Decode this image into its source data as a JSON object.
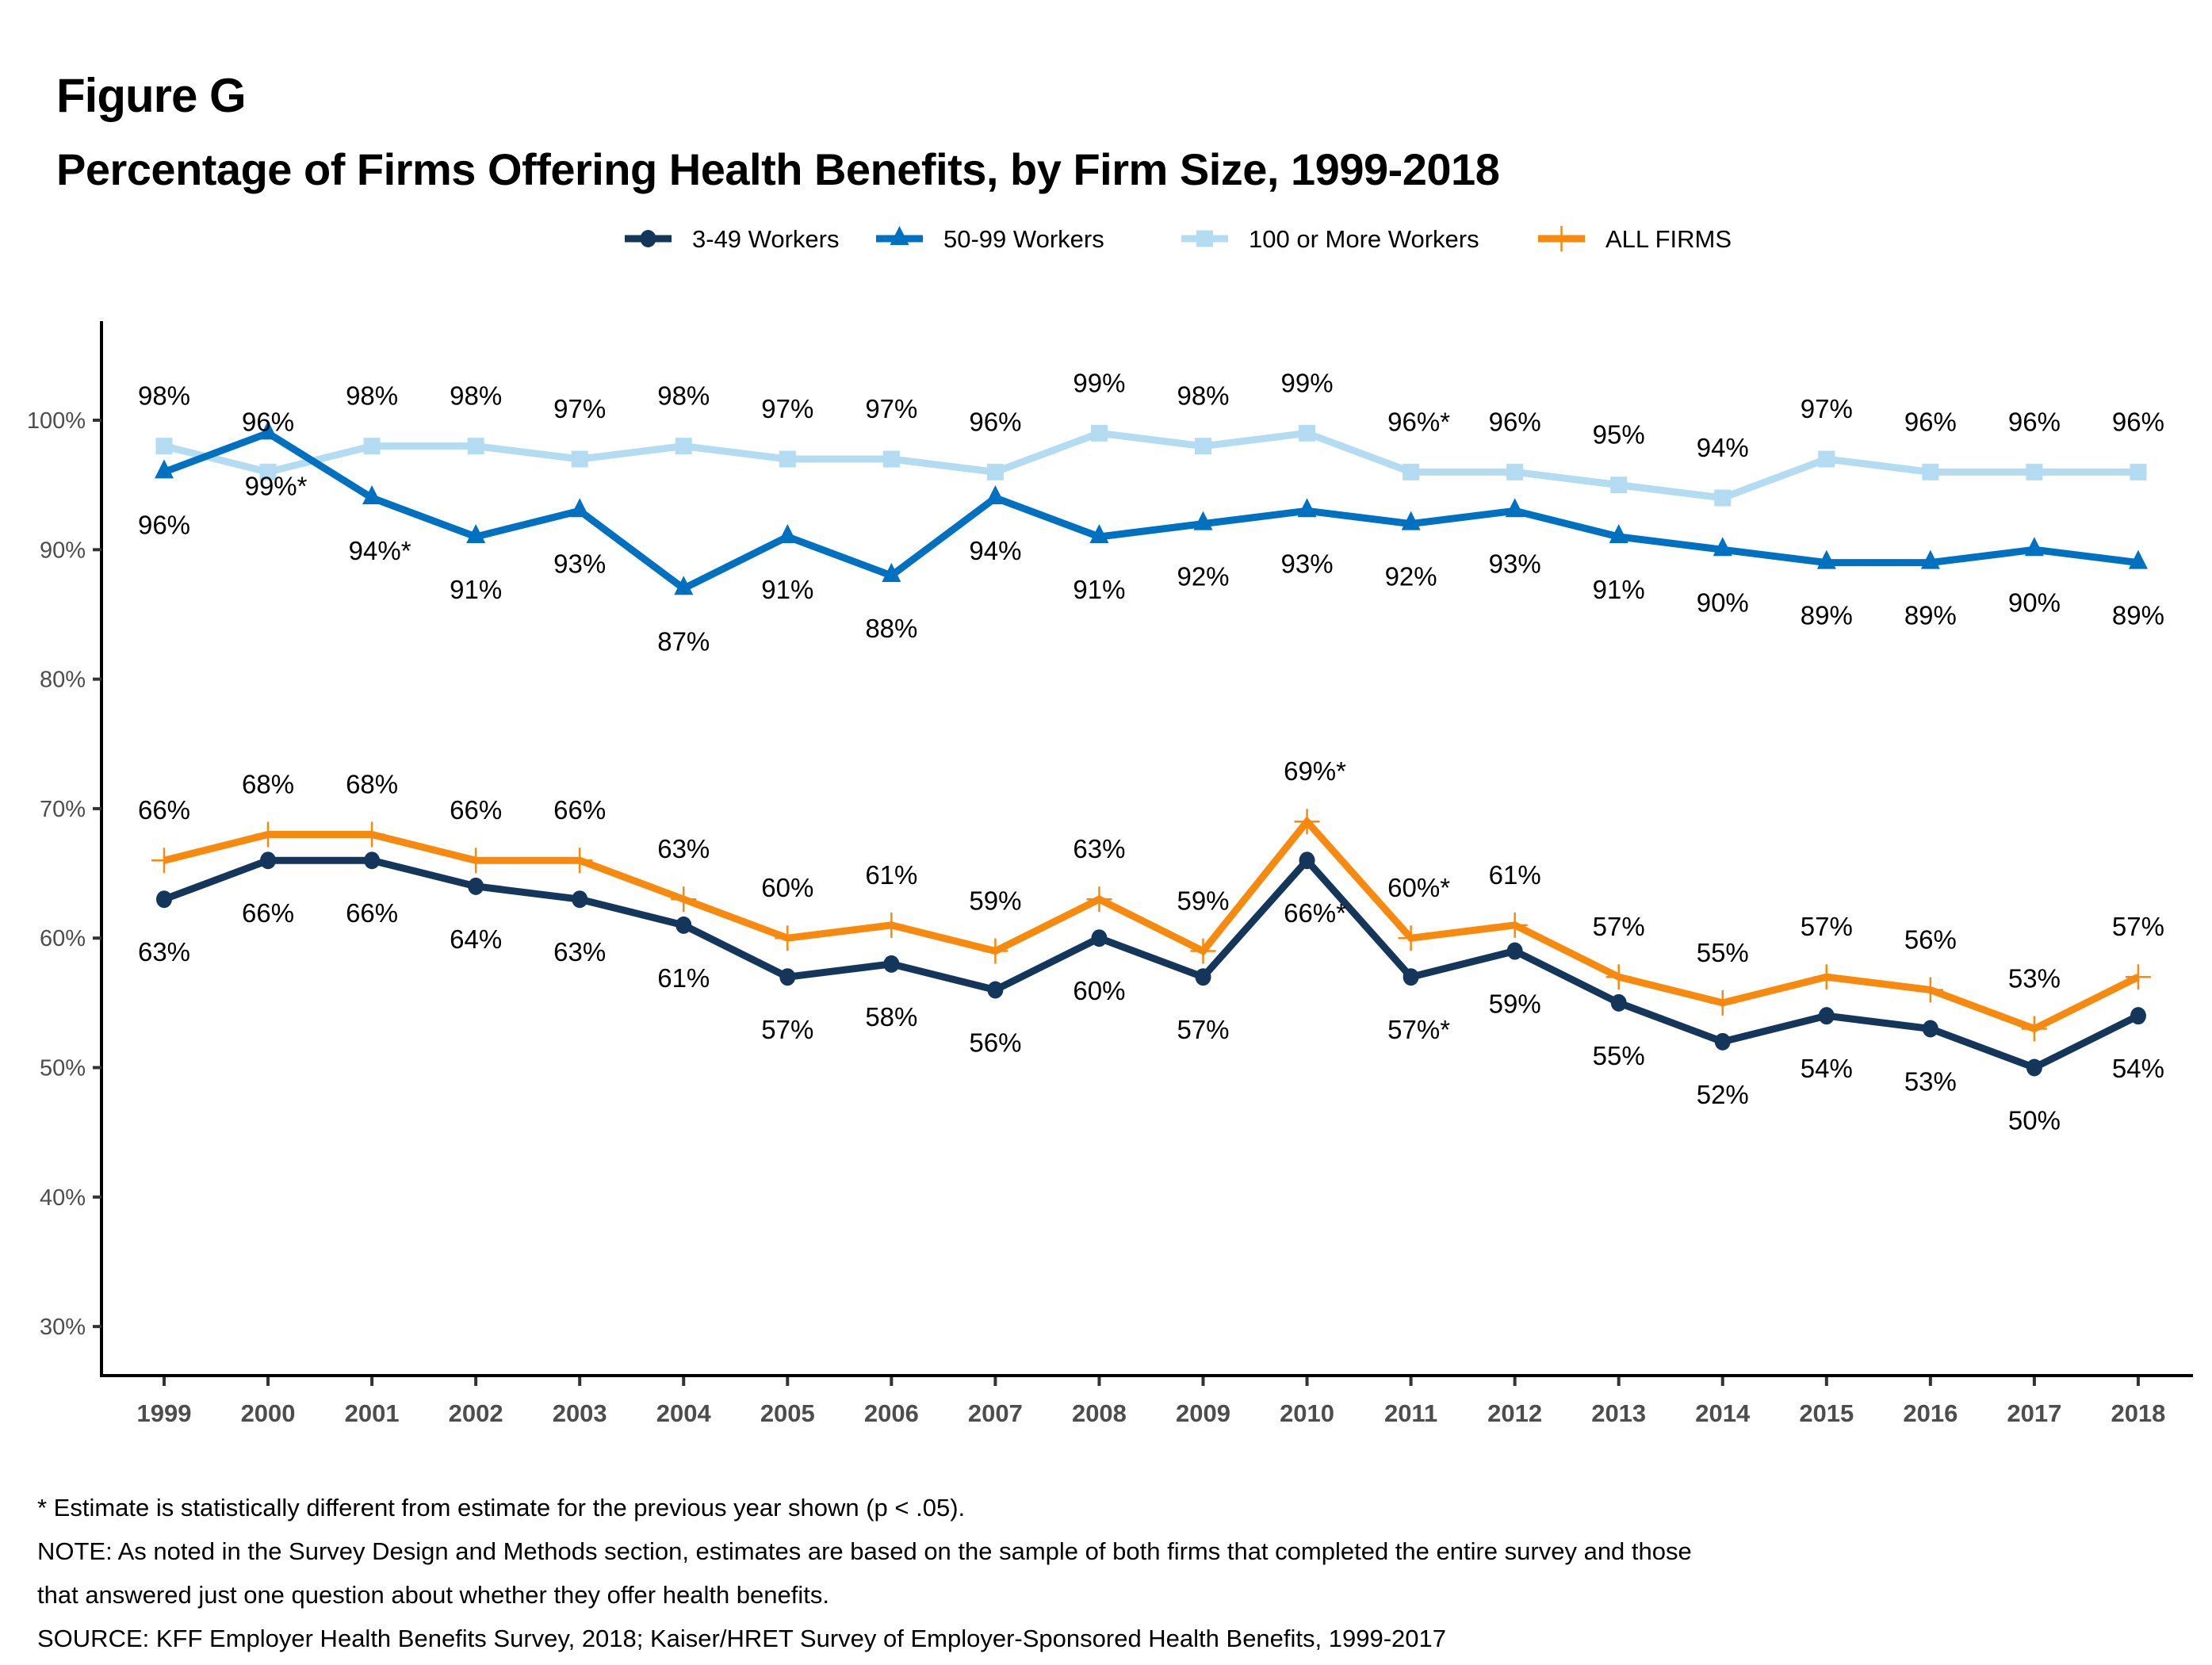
{
  "figure": {
    "label": "Figure G",
    "title": "Percentage of Firms Offering Health Benefits, by Firm Size, 1999-2018"
  },
  "footnotes": [
    "* Estimate is statistically different from estimate for the previous year shown (p < .05).",
    "NOTE: As noted in the Survey Design and Methods section, estimates are based on the sample of both firms that completed the entire survey and those",
    "that answered just one question about whether they offer health benefits.",
    "SOURCE: KFF Employer Health Benefits Survey, 2018; Kaiser/HRET Survey of Employer-Sponsored Health Benefits, 1999-2017"
  ],
  "chart_data": {
    "type": "line",
    "title": "Percentage of Firms Offering Health Benefits, by Firm Size, 1999-2018",
    "xlabel": "",
    "ylabel": "",
    "x": [
      "1999",
      "2000",
      "2001",
      "2002",
      "2003",
      "2004",
      "2005",
      "2006",
      "2007",
      "2008",
      "2009",
      "2010",
      "2011",
      "2012",
      "2013",
      "2014",
      "2015",
      "2016",
      "2017",
      "2018"
    ],
    "ylim": [
      26,
      108
    ],
    "yticks": [
      30,
      40,
      50,
      60,
      70,
      80,
      90,
      100
    ],
    "ytick_labels": [
      "30%",
      "40%",
      "50%",
      "60%",
      "70%",
      "80%",
      "90%",
      "100%"
    ],
    "grid": false,
    "legend_position": "top-center",
    "series": [
      {
        "name": "3-49 Workers",
        "color": "#14365a",
        "marker": "circle",
        "label_side": "below",
        "values": [
          63,
          66,
          66,
          64,
          63,
          61,
          57,
          58,
          56,
          60,
          57,
          66,
          57,
          59,
          55,
          52,
          54,
          53,
          50,
          54
        ],
        "labels": [
          "63%",
          "66%",
          "66%",
          "64%",
          "63%",
          "61%",
          "57%",
          "58%",
          "56%",
          "60%",
          "57%",
          "66%*",
          "57%*",
          "59%",
          "55%",
          "52%",
          "54%",
          "53%",
          "50%",
          "54%"
        ]
      },
      {
        "name": "50-99 Workers",
        "color": "#0070c0",
        "marker": "triangle",
        "label_side": "below",
        "values": [
          96,
          99,
          94,
          91,
          93,
          87,
          91,
          88,
          94,
          91,
          92,
          93,
          92,
          93,
          91,
          90,
          89,
          89,
          90,
          89
        ],
        "labels": [
          "96%",
          "99%*",
          "94%*",
          "91%",
          "93%",
          "87%",
          "91%",
          "88%",
          "94%",
          "91%",
          "92%",
          "93%",
          "92%",
          "93%",
          "91%",
          "90%",
          "89%",
          "89%",
          "90%",
          "89%"
        ]
      },
      {
        "name": "100 or More Workers",
        "color": "#b3dcf2",
        "marker": "square",
        "label_side": "above",
        "values": [
          98,
          96,
          98,
          98,
          97,
          98,
          97,
          97,
          96,
          99,
          98,
          99,
          96,
          96,
          95,
          94,
          97,
          96,
          96,
          96
        ],
        "labels": [
          "98%",
          "96%",
          "98%",
          "98%",
          "97%",
          "98%",
          "97%",
          "97%",
          "96%",
          "99%",
          "98%",
          "99%",
          "96%*",
          "96%",
          "95%",
          "94%",
          "97%",
          "96%",
          "96%",
          "96%"
        ]
      },
      {
        "name": "ALL FIRMS",
        "color": "#f8890f",
        "marker": "plus",
        "label_side": "above",
        "values": [
          66,
          68,
          68,
          66,
          66,
          63,
          60,
          61,
          59,
          63,
          59,
          69,
          60,
          61,
          57,
          55,
          57,
          56,
          53,
          57
        ],
        "labels": [
          "66%",
          "68%",
          "68%",
          "66%",
          "66%",
          "63%",
          "60%",
          "61%",
          "59%",
          "63%",
          "59%",
          "69%*",
          "60%*",
          "61%",
          "57%",
          "55%",
          "57%",
          "56%",
          "53%",
          "57%"
        ]
      }
    ]
  }
}
